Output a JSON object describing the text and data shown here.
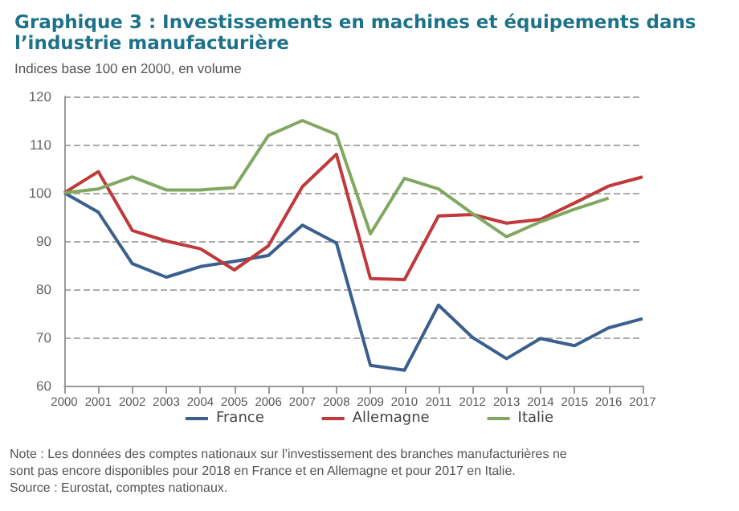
{
  "chart_data": {
    "type": "line",
    "title": "Graphique 3 : Investissements en machines et équipements dans l’industrie manufacturière",
    "subtitle": "Indices base 100 en 2000, en volume",
    "categories": [
      "2000",
      "2001",
      "2002",
      "2003",
      "2004",
      "2005",
      "2006",
      "2007",
      "2008",
      "2009",
      "2010",
      "2011",
      "2012",
      "2013",
      "2014",
      "2015",
      "2016",
      "2017"
    ],
    "series": [
      {
        "name": "France",
        "color": "#3b5f8e",
        "values": [
          100,
          96,
          85.3,
          82.5,
          84.7,
          85.8,
          87,
          93.3,
          89.6,
          64.2,
          63.2,
          76.7,
          70,
          65.6,
          69.8,
          68.3,
          72,
          73.9
        ]
      },
      {
        "name": "Allemagne",
        "color": "#c0393b",
        "values": [
          100,
          104.4,
          92.2,
          90,
          88.4,
          84,
          89,
          101.3,
          108,
          82.2,
          82,
          95.2,
          95.5,
          93.7,
          94.5,
          97.9,
          101.4,
          103.3
        ]
      },
      {
        "name": "Italie",
        "color": "#80a860",
        "values": [
          100,
          100.8,
          103.3,
          100.6,
          100.6,
          101.1,
          111.9,
          115,
          112.1,
          91.5,
          103,
          100.8,
          95.7,
          90.9,
          94,
          96.6,
          98.9,
          null
        ]
      }
    ],
    "ylim": [
      60,
      120
    ],
    "yticks": [
      60,
      70,
      80,
      90,
      100,
      110,
      120
    ],
    "grid": "y",
    "legend": "bottom",
    "marker": "none",
    "line_style": "solid",
    "annotations": [
      "Note : Les données des comptes nationaux sur l’investissement des branches manufacturières ne sont pas encore disponibles pour 2018 en France et en Allemagne et pour 2017 en Italie.",
      "Source : Eurostat, comptes nationaux."
    ]
  }
}
